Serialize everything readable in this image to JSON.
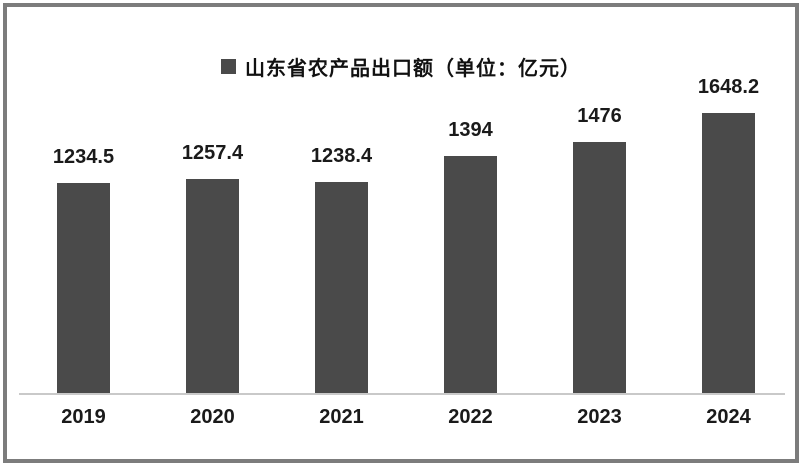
{
  "chart_data": {
    "type": "bar",
    "title": "山东省农产品出口额（单位：亿元）",
    "categories": [
      "2019",
      "2020",
      "2021",
      "2022",
      "2023",
      "2024"
    ],
    "values": [
      1234.5,
      1257.4,
      1238.4,
      1394,
      1476,
      1648.2
    ],
    "data_labels": [
      "1234.5",
      "1257.4",
      "1238.4",
      "1394",
      "1476",
      "1648.2"
    ],
    "xlabel": "",
    "ylabel": "",
    "ylim": [
      0,
      1700
    ],
    "grid": false,
    "legend_position": "top-center",
    "bar_color": "#4a4a4a",
    "axis_line_color": "#c9c9c9"
  },
  "legend": {
    "marker": "square-icon",
    "label": "山东省农产品出口额（单位：亿元）"
  },
  "colors": {
    "bar": "#4a4a4a",
    "border": "#7c7c7c",
    "axis_line": "#c9c9c9",
    "text": "#1a1a1a",
    "background": "#ffffff"
  }
}
